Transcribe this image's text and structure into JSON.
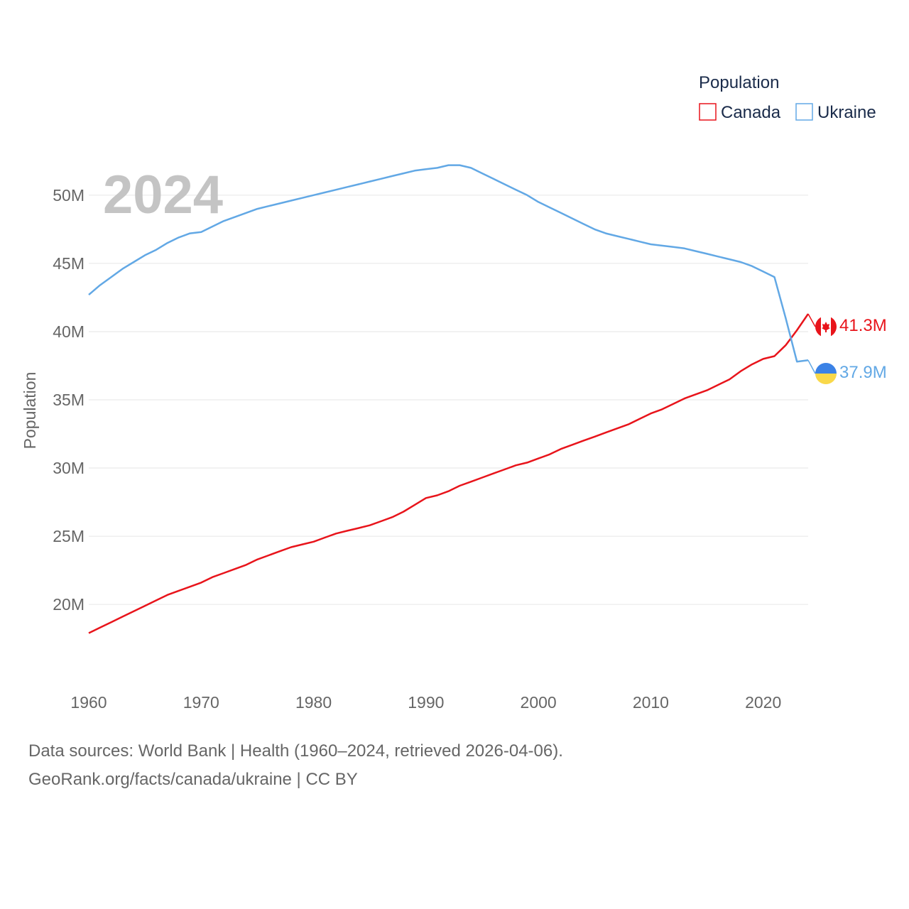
{
  "chart_data": {
    "type": "line",
    "ylabel": "Population",
    "year_label": "2024",
    "legend_title": "Population",
    "ylim": [
      16000000,
      54000000
    ],
    "xlim": [
      1960,
      2024
    ],
    "x_ticks": [
      1960,
      1970,
      1980,
      1990,
      2000,
      2010,
      2020
    ],
    "x_tick_labels": [
      "1960",
      "1970",
      "1980",
      "1990",
      "2000",
      "2010",
      "2020"
    ],
    "y_ticks": [
      20000000,
      25000000,
      30000000,
      35000000,
      40000000,
      45000000,
      50000000
    ],
    "y_tick_labels": [
      "20M",
      "25M",
      "30M",
      "35M",
      "40M",
      "45M",
      "50M"
    ],
    "x": [
      1960,
      1961,
      1962,
      1963,
      1964,
      1965,
      1966,
      1967,
      1968,
      1969,
      1970,
      1971,
      1972,
      1973,
      1974,
      1975,
      1976,
      1977,
      1978,
      1979,
      1980,
      1981,
      1982,
      1983,
      1984,
      1985,
      1986,
      1987,
      1988,
      1989,
      1990,
      1991,
      1992,
      1993,
      1994,
      1995,
      1996,
      1997,
      1998,
      1999,
      2000,
      2001,
      2002,
      2003,
      2004,
      2005,
      2006,
      2007,
      2008,
      2009,
      2010,
      2011,
      2012,
      2013,
      2014,
      2015,
      2016,
      2017,
      2018,
      2019,
      2020,
      2021,
      2022,
      2023,
      2024
    ],
    "series": [
      {
        "name": "Canada",
        "color": "#e8141b",
        "end_label": "41.3M",
        "values": [
          17.9,
          18.3,
          18.7,
          19.1,
          19.5,
          19.9,
          20.3,
          20.7,
          21.0,
          21.3,
          21.6,
          22.0,
          22.3,
          22.6,
          22.9,
          23.3,
          23.6,
          23.9,
          24.2,
          24.4,
          24.6,
          24.9,
          25.2,
          25.4,
          25.6,
          25.8,
          26.1,
          26.4,
          26.8,
          27.3,
          27.8,
          28.0,
          28.3,
          28.7,
          29.0,
          29.3,
          29.6,
          29.9,
          30.2,
          30.4,
          30.7,
          31.0,
          31.4,
          31.7,
          32.0,
          32.3,
          32.6,
          32.9,
          33.2,
          33.6,
          34.0,
          34.3,
          34.7,
          35.1,
          35.4,
          35.7,
          36.1,
          36.5,
          37.1,
          37.6,
          38.0,
          38.2,
          39.0,
          40.1,
          41.3
        ]
      },
      {
        "name": "Ukraine",
        "color": "#62a8e5",
        "end_label": "37.9M",
        "values": [
          42.7,
          43.4,
          44.0,
          44.6,
          45.1,
          45.6,
          46.0,
          46.5,
          46.9,
          47.2,
          47.3,
          47.7,
          48.1,
          48.4,
          48.7,
          49.0,
          49.2,
          49.4,
          49.6,
          49.8,
          50.0,
          50.2,
          50.4,
          50.6,
          50.8,
          51.0,
          51.2,
          51.4,
          51.6,
          51.8,
          51.9,
          52.0,
          52.2,
          52.2,
          52.0,
          51.6,
          51.2,
          50.8,
          50.4,
          50.0,
          49.5,
          49.1,
          48.7,
          48.3,
          47.9,
          47.5,
          47.2,
          47.0,
          46.8,
          46.6,
          46.4,
          46.3,
          46.2,
          46.1,
          45.9,
          45.7,
          45.5,
          45.3,
          45.1,
          44.8,
          44.4,
          44.0,
          41.0,
          37.8,
          37.9
        ]
      }
    ]
  },
  "footer": {
    "line1": "Data sources: World Bank | Health (1960–2024, retrieved 2026-04-06).",
    "line2": "GeoRank.org/facts/canada/ukraine | CC BY"
  }
}
